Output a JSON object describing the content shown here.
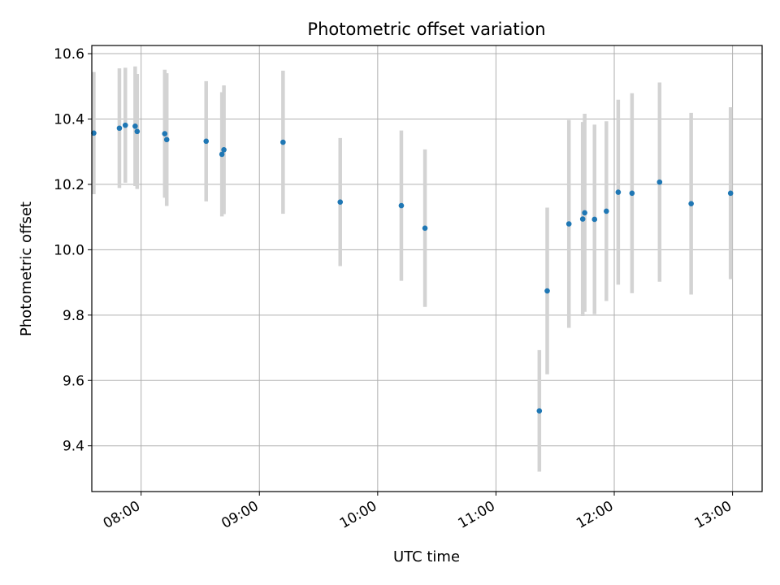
{
  "chart_data": {
    "type": "scatter",
    "title": "Photometric offset variation",
    "xlabel": "UTC time",
    "ylabel": "Photometric offset",
    "x_is_time": true,
    "xlim": [
      "07:35",
      "13:15"
    ],
    "ylim": [
      9.26,
      10.625
    ],
    "xticks": [
      "08:00",
      "09:00",
      "10:00",
      "11:00",
      "12:00",
      "13:00"
    ],
    "yticks": [
      9.4,
      9.6,
      9.8,
      10.0,
      10.2,
      10.4,
      10.6
    ],
    "ytick_labels": [
      "9.4",
      "9.6",
      "9.8",
      "10.0",
      "10.2",
      "10.4",
      "10.6"
    ],
    "grid": true,
    "point_color": "#1f77b4",
    "errorbar_color": "#d3d3d3",
    "points": [
      {
        "x": "07:36",
        "y": 10.357,
        "err": 0.187
      },
      {
        "x": "07:49",
        "y": 10.372,
        "err": 0.183
      },
      {
        "x": "07:52",
        "y": 10.381,
        "err": 0.176
      },
      {
        "x": "07:57",
        "y": 10.378,
        "err": 0.183
      },
      {
        "x": "07:58",
        "y": 10.362,
        "err": 0.176
      },
      {
        "x": "08:12",
        "y": 10.355,
        "err": 0.196
      },
      {
        "x": "08:13",
        "y": 10.337,
        "err": 0.203
      },
      {
        "x": "08:33",
        "y": 10.332,
        "err": 0.184
      },
      {
        "x": "08:41",
        "y": 10.292,
        "err": 0.19
      },
      {
        "x": "08:42",
        "y": 10.306,
        "err": 0.197
      },
      {
        "x": "09:12",
        "y": 10.329,
        "err": 0.219
      },
      {
        "x": "09:41",
        "y": 10.146,
        "err": 0.196
      },
      {
        "x": "10:12",
        "y": 10.135,
        "err": 0.23
      },
      {
        "x": "10:24",
        "y": 10.066,
        "err": 0.241
      },
      {
        "x": "11:22",
        "y": 9.507,
        "err": 0.186
      },
      {
        "x": "11:26",
        "y": 9.874,
        "err": 0.255
      },
      {
        "x": "11:37",
        "y": 10.079,
        "err": 0.318
      },
      {
        "x": "11:44",
        "y": 10.094,
        "err": 0.297
      },
      {
        "x": "11:45",
        "y": 10.113,
        "err": 0.303
      },
      {
        "x": "11:50",
        "y": 10.093,
        "err": 0.29
      },
      {
        "x": "11:56",
        "y": 10.118,
        "err": 0.275
      },
      {
        "x": "12:02",
        "y": 10.176,
        "err": 0.283
      },
      {
        "x": "12:09",
        "y": 10.173,
        "err": 0.306
      },
      {
        "x": "12:23",
        "y": 10.207,
        "err": 0.305
      },
      {
        "x": "12:39",
        "y": 10.141,
        "err": 0.278
      },
      {
        "x": "12:59",
        "y": 10.173,
        "err": 0.263
      }
    ]
  }
}
